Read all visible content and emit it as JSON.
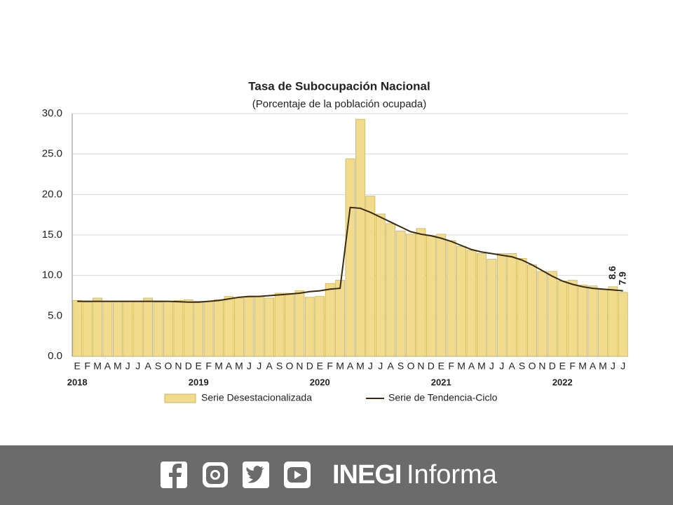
{
  "chart_data": {
    "type": "bar",
    "title": "Tasa de Subocupación Nacional",
    "subtitle": "(Porcentaje de la población ocupada)",
    "categories": [
      "E",
      "F",
      "M",
      "A",
      "M",
      "J",
      "J",
      "A",
      "S",
      "O",
      "N",
      "D",
      "E",
      "F",
      "M",
      "A",
      "M",
      "J",
      "J",
      "A",
      "S",
      "O",
      "N",
      "D",
      "E",
      "F",
      "M",
      "A",
      "M",
      "J",
      "J",
      "A",
      "S",
      "O",
      "N",
      "D",
      "E",
      "F",
      "M",
      "A",
      "M",
      "J",
      "J",
      "A",
      "S",
      "O",
      "N",
      "D",
      "E",
      "F",
      "M",
      "A",
      "M",
      "J",
      "J"
    ],
    "years": [
      "2018",
      "2019",
      "2020",
      "2021",
      "2022"
    ],
    "series": [
      {
        "name": "Serie Desestacionalizada",
        "type": "bar",
        "color": "#f0dc8c",
        "edge": "#c9b458",
        "values": [
          6.9,
          6.7,
          7.2,
          6.8,
          6.8,
          6.8,
          6.8,
          7.2,
          6.7,
          6.8,
          6.9,
          7.0,
          6.8,
          6.8,
          7.0,
          7.4,
          7.2,
          7.3,
          7.4,
          7.2,
          7.8,
          7.8,
          8.1,
          7.3,
          7.4,
          9.0,
          9.4,
          24.4,
          29.3,
          19.8,
          17.6,
          16.4,
          15.5,
          15.1,
          15.8,
          14.9,
          15.1,
          14.3,
          13.6,
          13.1,
          12.7,
          12.0,
          12.7,
          12.7,
          12.1,
          11.3,
          10.5,
          10.5,
          9.3,
          9.4,
          8.8,
          8.7,
          8.3,
          8.6,
          7.9
        ],
        "labeled_points": [
          53,
          54
        ]
      },
      {
        "name": "Serie de Tendencia-Ciclo",
        "type": "line",
        "color": "#3a2a10",
        "values": [
          6.8,
          6.8,
          6.8,
          6.8,
          6.8,
          6.8,
          6.8,
          6.8,
          6.8,
          6.8,
          6.75,
          6.7,
          6.7,
          6.8,
          6.9,
          7.1,
          7.3,
          7.4,
          7.4,
          7.5,
          7.6,
          7.7,
          7.8,
          8.0,
          8.1,
          8.3,
          8.4,
          18.4,
          18.3,
          17.8,
          17.2,
          16.6,
          16.0,
          15.4,
          15.1,
          14.9,
          14.6,
          14.2,
          13.7,
          13.2,
          12.9,
          12.7,
          12.5,
          12.3,
          11.9,
          11.3,
          10.6,
          9.9,
          9.3,
          8.9,
          8.6,
          8.4,
          8.3,
          8.2,
          8.1
        ]
      }
    ],
    "ylim": [
      0,
      30
    ],
    "yticks": [
      {
        "value": 0,
        "label": "0.0"
      },
      {
        "value": 5,
        "label": "5.0"
      },
      {
        "value": 10,
        "label": "10.0"
      },
      {
        "value": 15,
        "label": "15.0"
      },
      {
        "value": 20,
        "label": "20.0"
      },
      {
        "value": 25,
        "label": "25.0"
      },
      {
        "value": 30,
        "label": "30.0"
      }
    ],
    "grid": true
  },
  "footer": {
    "brand": "INEGI",
    "subbrand": "Informa"
  }
}
